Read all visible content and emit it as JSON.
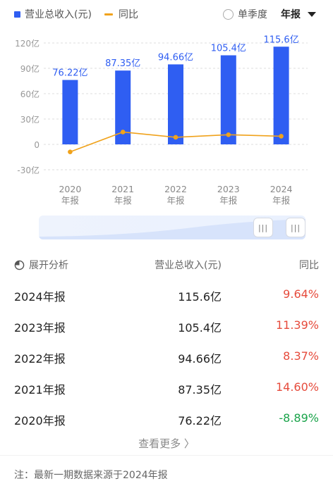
{
  "legend": {
    "revenue_label": "营业总收入(元)",
    "yoy_label": "同比",
    "quarter_label": "单季度",
    "period_label": "年报"
  },
  "colors": {
    "bar": "#2f5ef2",
    "line": "#f0a21b",
    "positive": "#e64b3c",
    "negative": "#1aa34a"
  },
  "chart_data": {
    "type": "bar",
    "categories": [
      "2020\n年报",
      "2021\n年报",
      "2022\n年报",
      "2023\n年报",
      "2024\n年报"
    ],
    "series": [
      {
        "name": "营业总收入(元)",
        "type": "bar",
        "values": [
          76.22,
          87.35,
          94.66,
          105.4,
          115.6
        ],
        "labels": [
          "76.22亿",
          "87.35亿",
          "94.66亿",
          "105.4亿",
          "115.6亿"
        ]
      },
      {
        "name": "同比",
        "type": "line",
        "values": [
          -8.89,
          14.6,
          8.37,
          11.39,
          9.64
        ]
      }
    ],
    "yticks": [
      "120亿",
      "90亿",
      "60亿",
      "30亿",
      "0",
      "-30亿"
    ],
    "ytick_values": [
      120,
      90,
      60,
      30,
      0,
      -30
    ],
    "ylim": [
      -30,
      120
    ],
    "grid": true
  },
  "slider": {
    "handle_glyph": "|||"
  },
  "table": {
    "headers": [
      "展开分析",
      "营业总收入(元)",
      "同比"
    ],
    "rows": [
      {
        "period": "2024年报",
        "revenue": "115.6亿",
        "yoy": "9.64%",
        "sign": "pos"
      },
      {
        "period": "2023年报",
        "revenue": "105.4亿",
        "yoy": "11.39%",
        "sign": "pos"
      },
      {
        "period": "2022年报",
        "revenue": "94.66亿",
        "yoy": "8.37%",
        "sign": "pos"
      },
      {
        "period": "2021年报",
        "revenue": "87.35亿",
        "yoy": "14.60%",
        "sign": "pos"
      },
      {
        "period": "2020年报",
        "revenue": "76.22亿",
        "yoy": "-8.89%",
        "sign": "neg"
      }
    ]
  },
  "more_label": "查看更多 〉",
  "note": "注：最新一期数据来源于2024年报"
}
